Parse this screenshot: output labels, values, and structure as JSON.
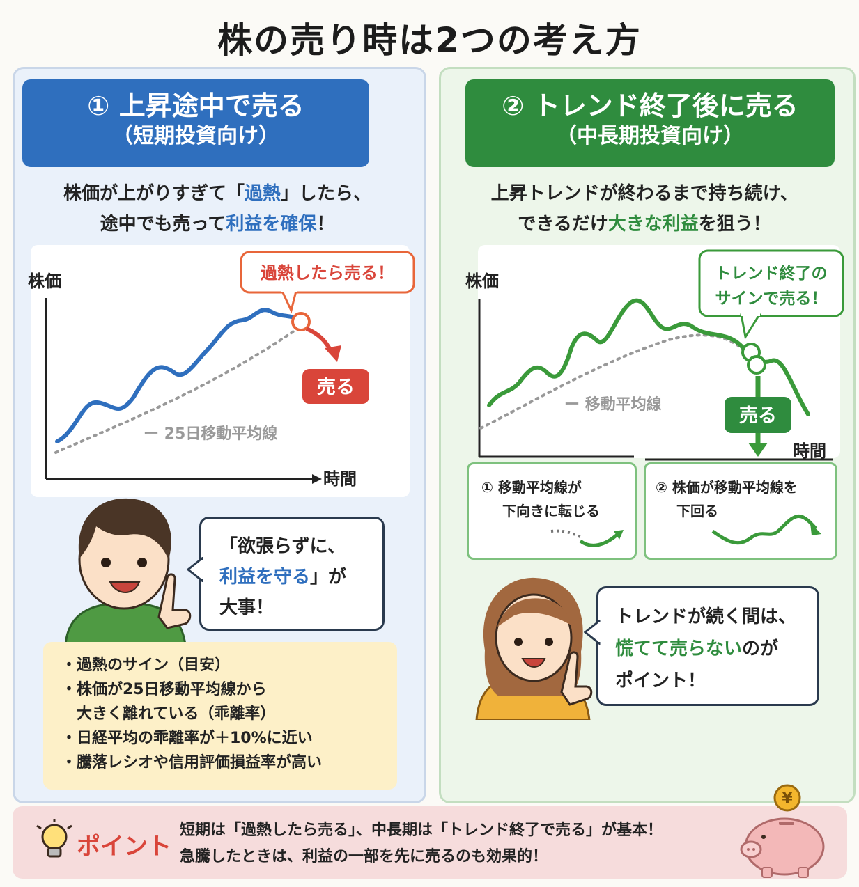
{
  "title": "株の売り時は2つの考え方",
  "left": {
    "banner_line1": "① 上昇途中で売る",
    "banner_line2": "（短期投資向け）",
    "intro_line1_a": "株価が上がりすぎて「",
    "intro_line1_b": "過熱",
    "intro_line1_c": "」したら、",
    "intro_line2_a": "途中でも売って",
    "intro_line2_b": "利益を確保",
    "intro_line2_c": "！",
    "chart_ylabel": "株価",
    "chart_xlabel": "時間",
    "ma_label": "ー 25日移動平均線",
    "callout": "過熱したら売る！",
    "sell_label": "売る",
    "bubble_line1": "「欲張らずに、",
    "bubble_line2_a": "利益を守る",
    "bubble_line2_b": "」が",
    "bubble_line3": "大事！",
    "notes": [
      "・過熱のサイン（目安）",
      "・株価が25日移動平均線から",
      "　大きく離れている（乖離率）",
      "・日経平均の乖離率が＋10%に近い",
      "・騰落レシオや信用評価損益率が高い"
    ]
  },
  "right": {
    "banner_line1": "② トレンド終了後に売る",
    "banner_line2": "（中長期投資向け）",
    "intro_line1": "上昇トレンドが終わるまで持ち続け、",
    "intro_line2_a": "できるだけ",
    "intro_line2_b": "大きな利益",
    "intro_line2_c": "を狙う！",
    "chart_ylabel": "株価",
    "chart_xlabel": "時間",
    "ma_label": "ー 移動平均線",
    "callout_line1": "トレンド終了の",
    "callout_line2": "サインで売る！",
    "sell_label": "売る",
    "sign1_line1": "① 移動平均線が",
    "sign1_line2": "下向きに転じる",
    "sign2_line1": "② 株価が移動平均線を",
    "sign2_line2": "下回る",
    "bubble_line1": "トレンドが続く間は、",
    "bubble_line2_a": "慌てて売らない",
    "bubble_line2_b": "のが",
    "bubble_line3": "ポイント！"
  },
  "point": {
    "label": "ポイント",
    "line1": "短期は「過熱したら売る」、中長期は「トレンド終了で売る」が基本！",
    "line2": "急騰したときは、利益の一部を先に売るのも効果的！"
  },
  "colors": {
    "blue": "#2f6fbe",
    "green": "#2f8c3e",
    "red": "#d9453a"
  }
}
